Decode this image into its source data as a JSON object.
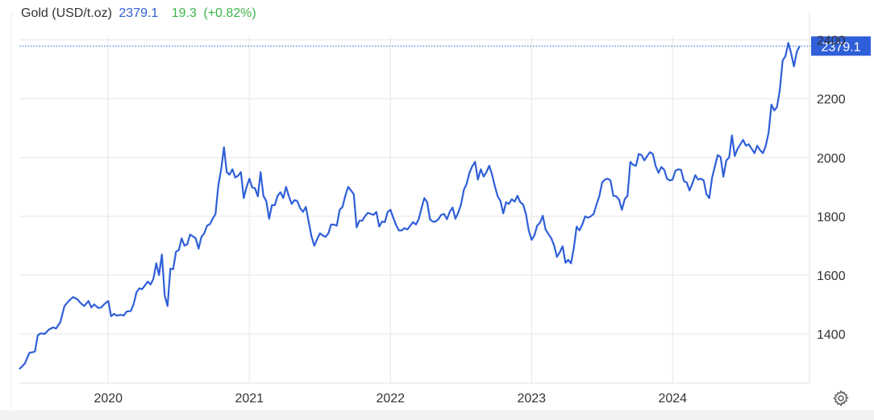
{
  "header": {
    "instrument": "Gold (USD/t.oz)",
    "price": "2379.1",
    "change": "19.3",
    "change_pct": "(+0.82%)"
  },
  "price_tag": "2379.1",
  "colors": {
    "line": "#2f5fd8",
    "positive": "#3ab54a",
    "grid": "#e6e6e6",
    "price_tag_bg": "#2f5fd8"
  },
  "icons": {
    "settings": "gear-icon"
  },
  "chart_data": {
    "type": "line",
    "series": [
      {
        "values": [
          [
            2019.37,
            1280
          ],
          [
            2019.41,
            1300
          ],
          [
            2019.44,
            1335
          ],
          [
            2019.48,
            1340
          ],
          [
            2019.5,
            1395
          ],
          [
            2019.52,
            1402
          ],
          [
            2019.55,
            1400
          ],
          [
            2019.58,
            1415
          ],
          [
            2019.61,
            1422
          ],
          [
            2019.63,
            1418
          ],
          [
            2019.66,
            1440
          ],
          [
            2019.69,
            1495
          ],
          [
            2019.72,
            1512
          ],
          [
            2019.75,
            1525
          ],
          [
            2019.78,
            1518
          ],
          [
            2019.81,
            1502
          ],
          [
            2019.83,
            1495
          ],
          [
            2019.86,
            1512
          ],
          [
            2019.88,
            1490
          ],
          [
            2019.9,
            1500
          ],
          [
            2019.93,
            1488
          ],
          [
            2019.95,
            1490
          ],
          [
            2019.98,
            1505
          ],
          [
            2020.0,
            1512
          ],
          [
            2020.02,
            1460
          ],
          [
            2020.04,
            1468
          ],
          [
            2020.06,
            1462
          ],
          [
            2020.09,
            1465
          ],
          [
            2020.11,
            1462
          ],
          [
            2020.13,
            1476
          ],
          [
            2020.16,
            1478
          ],
          [
            2020.18,
            1502
          ],
          [
            2020.2,
            1542
          ],
          [
            2020.22,
            1555
          ],
          [
            2020.24,
            1552
          ],
          [
            2020.26,
            1565
          ],
          [
            2020.28,
            1578
          ],
          [
            2020.3,
            1568
          ],
          [
            2020.32,
            1588
          ],
          [
            2020.34,
            1640
          ],
          [
            2020.36,
            1600
          ],
          [
            2020.38,
            1670
          ],
          [
            2020.4,
            1530
          ],
          [
            2020.42,
            1495
          ],
          [
            2020.44,
            1622
          ],
          [
            2020.46,
            1620
          ],
          [
            2020.48,
            1680
          ],
          [
            2020.5,
            1685
          ],
          [
            2020.52,
            1725
          ],
          [
            2020.54,
            1700
          ],
          [
            2020.56,
            1705
          ],
          [
            2020.58,
            1738
          ],
          [
            2020.6,
            1732
          ],
          [
            2020.62,
            1725
          ],
          [
            2020.64,
            1690
          ],
          [
            2020.66,
            1730
          ],
          [
            2020.68,
            1742
          ],
          [
            2020.7,
            1768
          ],
          [
            2020.72,
            1773
          ],
          [
            2020.74,
            1792
          ],
          [
            2020.76,
            1808
          ],
          [
            2020.78,
            1905
          ],
          [
            2020.8,
            1960
          ],
          [
            2020.82,
            2035
          ],
          [
            2020.84,
            1950
          ],
          [
            2020.86,
            1942
          ],
          [
            2020.88,
            1960
          ],
          [
            2020.9,
            1932
          ],
          [
            2020.92,
            1938
          ],
          [
            2020.94,
            1950
          ],
          [
            2020.96,
            1862
          ],
          [
            2020.98,
            1900
          ],
          [
            2021.0,
            1928
          ],
          [
            2021.02,
            1898
          ],
          [
            2021.04,
            1895
          ],
          [
            2021.06,
            1868
          ],
          [
            2021.08,
            1950
          ],
          [
            2021.1,
            1870
          ],
          [
            2021.12,
            1852
          ],
          [
            2021.14,
            1792
          ],
          [
            2021.16,
            1838
          ],
          [
            2021.18,
            1838
          ],
          [
            2021.2,
            1870
          ],
          [
            2021.22,
            1882
          ],
          [
            2021.24,
            1862
          ],
          [
            2021.26,
            1900
          ],
          [
            2021.28,
            1868
          ],
          [
            2021.3,
            1842
          ],
          [
            2021.32,
            1855
          ],
          [
            2021.34,
            1852
          ],
          [
            2021.36,
            1828
          ],
          [
            2021.38,
            1815
          ],
          [
            2021.4,
            1832
          ],
          [
            2021.42,
            1782
          ],
          [
            2021.44,
            1732
          ],
          [
            2021.46,
            1700
          ],
          [
            2021.48,
            1722
          ],
          [
            2021.5,
            1742
          ],
          [
            2021.52,
            1735
          ],
          [
            2021.54,
            1730
          ],
          [
            2021.56,
            1742
          ],
          [
            2021.58,
            1772
          ],
          [
            2021.6,
            1772
          ],
          [
            2021.62,
            1768
          ],
          [
            2021.64,
            1822
          ],
          [
            2021.66,
            1832
          ],
          [
            2021.68,
            1870
          ],
          [
            2021.7,
            1900
          ],
          [
            2021.72,
            1888
          ],
          [
            2021.74,
            1875
          ],
          [
            2021.76,
            1762
          ],
          [
            2021.78,
            1785
          ],
          [
            2021.8,
            1785
          ],
          [
            2021.82,
            1800
          ],
          [
            2021.84,
            1812
          ],
          [
            2021.86,
            1808
          ],
          [
            2021.88,
            1805
          ],
          [
            2021.9,
            1815
          ],
          [
            2021.92,
            1765
          ],
          [
            2021.94,
            1782
          ],
          [
            2021.96,
            1780
          ],
          [
            2021.98,
            1815
          ],
          [
            2022.0,
            1822
          ],
          [
            2022.02,
            1795
          ],
          [
            2022.04,
            1770
          ],
          [
            2022.06,
            1752
          ],
          [
            2022.08,
            1752
          ],
          [
            2022.1,
            1760
          ],
          [
            2022.12,
            1755
          ],
          [
            2022.14,
            1768
          ],
          [
            2022.16,
            1780
          ],
          [
            2022.18,
            1772
          ],
          [
            2022.2,
            1790
          ],
          [
            2022.22,
            1828
          ],
          [
            2022.24,
            1862
          ],
          [
            2022.26,
            1848
          ],
          [
            2022.28,
            1790
          ],
          [
            2022.3,
            1782
          ],
          [
            2022.32,
            1782
          ],
          [
            2022.34,
            1790
          ],
          [
            2022.36,
            1805
          ],
          [
            2022.38,
            1808
          ],
          [
            2022.4,
            1790
          ],
          [
            2022.42,
            1815
          ],
          [
            2022.44,
            1830
          ],
          [
            2022.46,
            1792
          ],
          [
            2022.48,
            1812
          ],
          [
            2022.5,
            1840
          ],
          [
            2022.52,
            1890
          ],
          [
            2022.54,
            1910
          ],
          [
            2022.56,
            1948
          ],
          [
            2022.58,
            1970
          ],
          [
            2022.6,
            1985
          ],
          [
            2022.62,
            1925
          ],
          [
            2022.64,
            1960
          ],
          [
            2022.66,
            1935
          ],
          [
            2022.68,
            1950
          ],
          [
            2022.7,
            1972
          ],
          [
            2022.72,
            1942
          ],
          [
            2022.74,
            1902
          ],
          [
            2022.76,
            1868
          ],
          [
            2022.78,
            1852
          ],
          [
            2022.8,
            1810
          ],
          [
            2022.82,
            1848
          ],
          [
            2022.84,
            1842
          ],
          [
            2022.86,
            1858
          ],
          [
            2022.88,
            1850
          ],
          [
            2022.9,
            1870
          ],
          [
            2022.92,
            1848
          ],
          [
            2022.94,
            1840
          ],
          [
            2022.96,
            1808
          ],
          [
            2022.98,
            1752
          ],
          [
            2023.0,
            1720
          ],
          [
            2023.02,
            1735
          ],
          [
            2023.04,
            1768
          ],
          [
            2023.06,
            1778
          ],
          [
            2023.08,
            1802
          ],
          [
            2023.1,
            1755
          ],
          [
            2023.12,
            1740
          ],
          [
            2023.14,
            1725
          ],
          [
            2023.16,
            1700
          ],
          [
            2023.18,
            1662
          ],
          [
            2023.2,
            1678
          ],
          [
            2023.22,
            1698
          ],
          [
            2023.24,
            1642
          ],
          [
            2023.26,
            1652
          ],
          [
            2023.28,
            1640
          ],
          [
            2023.3,
            1692
          ],
          [
            2023.32,
            1765
          ],
          [
            2023.34,
            1752
          ],
          [
            2023.36,
            1772
          ],
          [
            2023.38,
            1800
          ],
          [
            2023.4,
            1795
          ],
          [
            2023.42,
            1800
          ],
          [
            2023.44,
            1808
          ],
          [
            2023.46,
            1840
          ],
          [
            2023.48,
            1868
          ],
          [
            2023.5,
            1915
          ],
          [
            2023.52,
            1925
          ],
          [
            2023.54,
            1928
          ],
          [
            2023.56,
            1922
          ],
          [
            2023.58,
            1870
          ],
          [
            2023.6,
            1868
          ],
          [
            2023.62,
            1858
          ],
          [
            2023.64,
            1822
          ],
          [
            2023.66,
            1858
          ],
          [
            2023.68,
            1870
          ],
          [
            2023.7,
            1985
          ],
          [
            2023.72,
            1975
          ],
          [
            2023.74,
            1972
          ],
          [
            2023.76,
            2012
          ],
          [
            2023.78,
            2008
          ],
          [
            2023.8,
            1990
          ],
          [
            2023.82,
            2005
          ],
          [
            2023.84,
            2018
          ],
          [
            2023.86,
            2012
          ],
          [
            2023.88,
            1970
          ],
          [
            2023.9,
            1948
          ],
          [
            2023.92,
            1968
          ],
          [
            2023.94,
            1958
          ],
          [
            2023.96,
            1928
          ],
          [
            2023.98,
            1922
          ],
          [
            2024.0,
            1925
          ],
          [
            2024.02,
            1955
          ],
          [
            2024.04,
            1960
          ],
          [
            2024.06,
            1958
          ],
          [
            2024.08,
            1920
          ],
          [
            2024.1,
            1915
          ],
          [
            2024.12,
            1888
          ],
          [
            2024.14,
            1912
          ],
          [
            2024.16,
            1940
          ],
          [
            2024.18,
            1925
          ],
          [
            2024.2,
            1928
          ],
          [
            2024.22,
            1922
          ],
          [
            2024.24,
            1875
          ],
          [
            2024.26,
            1862
          ],
          [
            2024.28,
            1932
          ],
          [
            2024.3,
            1970
          ],
          [
            2024.32,
            2008
          ],
          [
            2024.34,
            2002
          ],
          [
            2024.36,
            1935
          ],
          [
            2024.38,
            1990
          ],
          [
            2024.4,
            2000
          ],
          [
            2024.42,
            2075
          ],
          [
            2024.44,
            2005
          ],
          [
            2024.46,
            2030
          ],
          [
            2024.48,
            2045
          ],
          [
            2024.5,
            2060
          ],
          [
            2024.52,
            2040
          ],
          [
            2024.54,
            2045
          ],
          [
            2024.56,
            2030
          ],
          [
            2024.58,
            2015
          ],
          [
            2024.6,
            2040
          ],
          [
            2024.62,
            2025
          ],
          [
            2024.64,
            2015
          ],
          [
            2024.66,
            2040
          ],
          [
            2024.68,
            2085
          ],
          [
            2024.7,
            2180
          ],
          [
            2024.72,
            2160
          ],
          [
            2024.74,
            2172
          ],
          [
            2024.76,
            2230
          ],
          [
            2024.78,
            2330
          ],
          [
            2024.8,
            2345
          ],
          [
            2024.82,
            2390
          ],
          [
            2024.84,
            2355
          ],
          [
            2024.86,
            2310
          ],
          [
            2024.88,
            2360
          ],
          [
            2024.9,
            2379
          ]
        ]
      }
    ],
    "x_ticks": [
      {
        "value": 2020,
        "label": "2020"
      },
      {
        "value": 2021,
        "label": "2021"
      },
      {
        "value": 2022,
        "label": "2022"
      },
      {
        "value": 2023,
        "label": "2023"
      },
      {
        "value": 2024,
        "label": "2024"
      }
    ],
    "y_ticks": [
      {
        "value": 1400,
        "label": "1400"
      },
      {
        "value": 1600,
        "label": "1600"
      },
      {
        "value": 1800,
        "label": "1800"
      },
      {
        "value": 2000,
        "label": "2000"
      },
      {
        "value": 2200,
        "label": "2200"
      },
      {
        "value": 2400,
        "label": "2400"
      }
    ],
    "xlim": [
      2019.37,
      2024.97
    ],
    "ylim": [
      1233,
      2440
    ],
    "last_value": 2379.1,
    "grid": true,
    "y_axis_side": "right"
  }
}
